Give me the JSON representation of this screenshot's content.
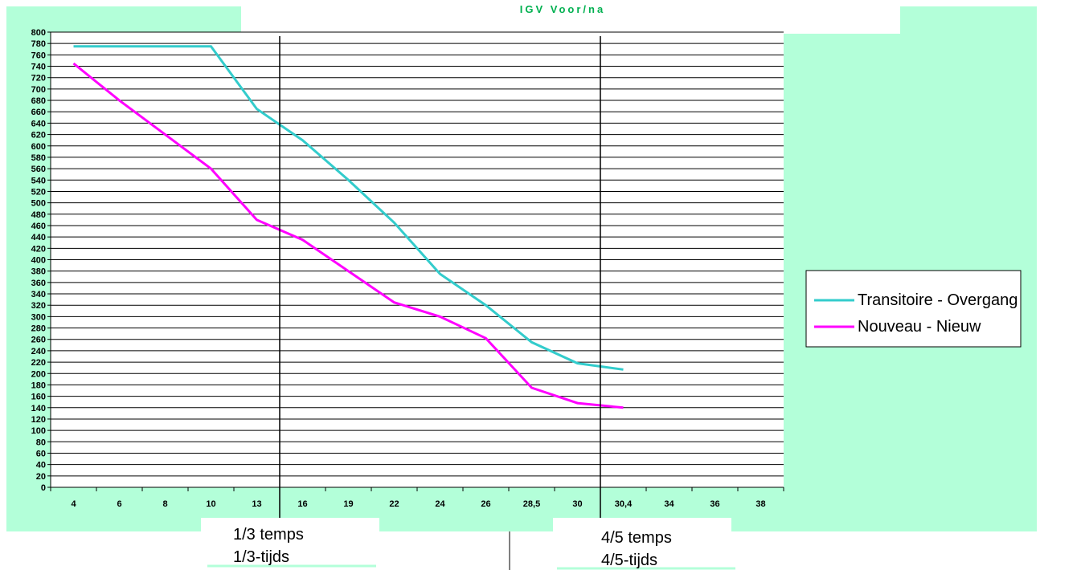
{
  "chart_data": {
    "type": "line",
    "title": "IGV Voor/na",
    "categories": [
      "4",
      "6",
      "8",
      "10",
      "13",
      "16",
      "19",
      "22",
      "24",
      "26",
      "28,5",
      "30",
      "30,4",
      "34",
      "36",
      "38"
    ],
    "ylim": [
      0,
      800
    ],
    "yticks": [
      0,
      20,
      40,
      60,
      80,
      100,
      120,
      140,
      160,
      180,
      200,
      220,
      240,
      260,
      280,
      300,
      320,
      340,
      360,
      380,
      400,
      420,
      440,
      460,
      480,
      500,
      520,
      540,
      560,
      580,
      600,
      620,
      640,
      660,
      680,
      700,
      720,
      740,
      760,
      780,
      800
    ],
    "grid": true,
    "legend_position": "right",
    "series": [
      {
        "name": "Transitoire - Overgang",
        "color": "#33cccc",
        "values": [
          775,
          775,
          775,
          775,
          665,
          610,
          540,
          465,
          375,
          320,
          255,
          218,
          207,
          null,
          null,
          null
        ]
      },
      {
        "name": "Nouveau - Nieuw",
        "color": "#ff00ff",
        "values": [
          745,
          680,
          620,
          560,
          470,
          435,
          380,
          325,
          300,
          262,
          175,
          148,
          140,
          null,
          null,
          null
        ]
      }
    ],
    "markers": [
      {
        "category_between": [
          "13",
          "16"
        ],
        "label_lines": [
          "1/3 temps",
          "1/3-tijds"
        ]
      },
      {
        "category_between": [
          "30",
          "30,4"
        ],
        "label_lines": [
          "4/5 temps",
          "4/5-tijds"
        ]
      }
    ]
  }
}
